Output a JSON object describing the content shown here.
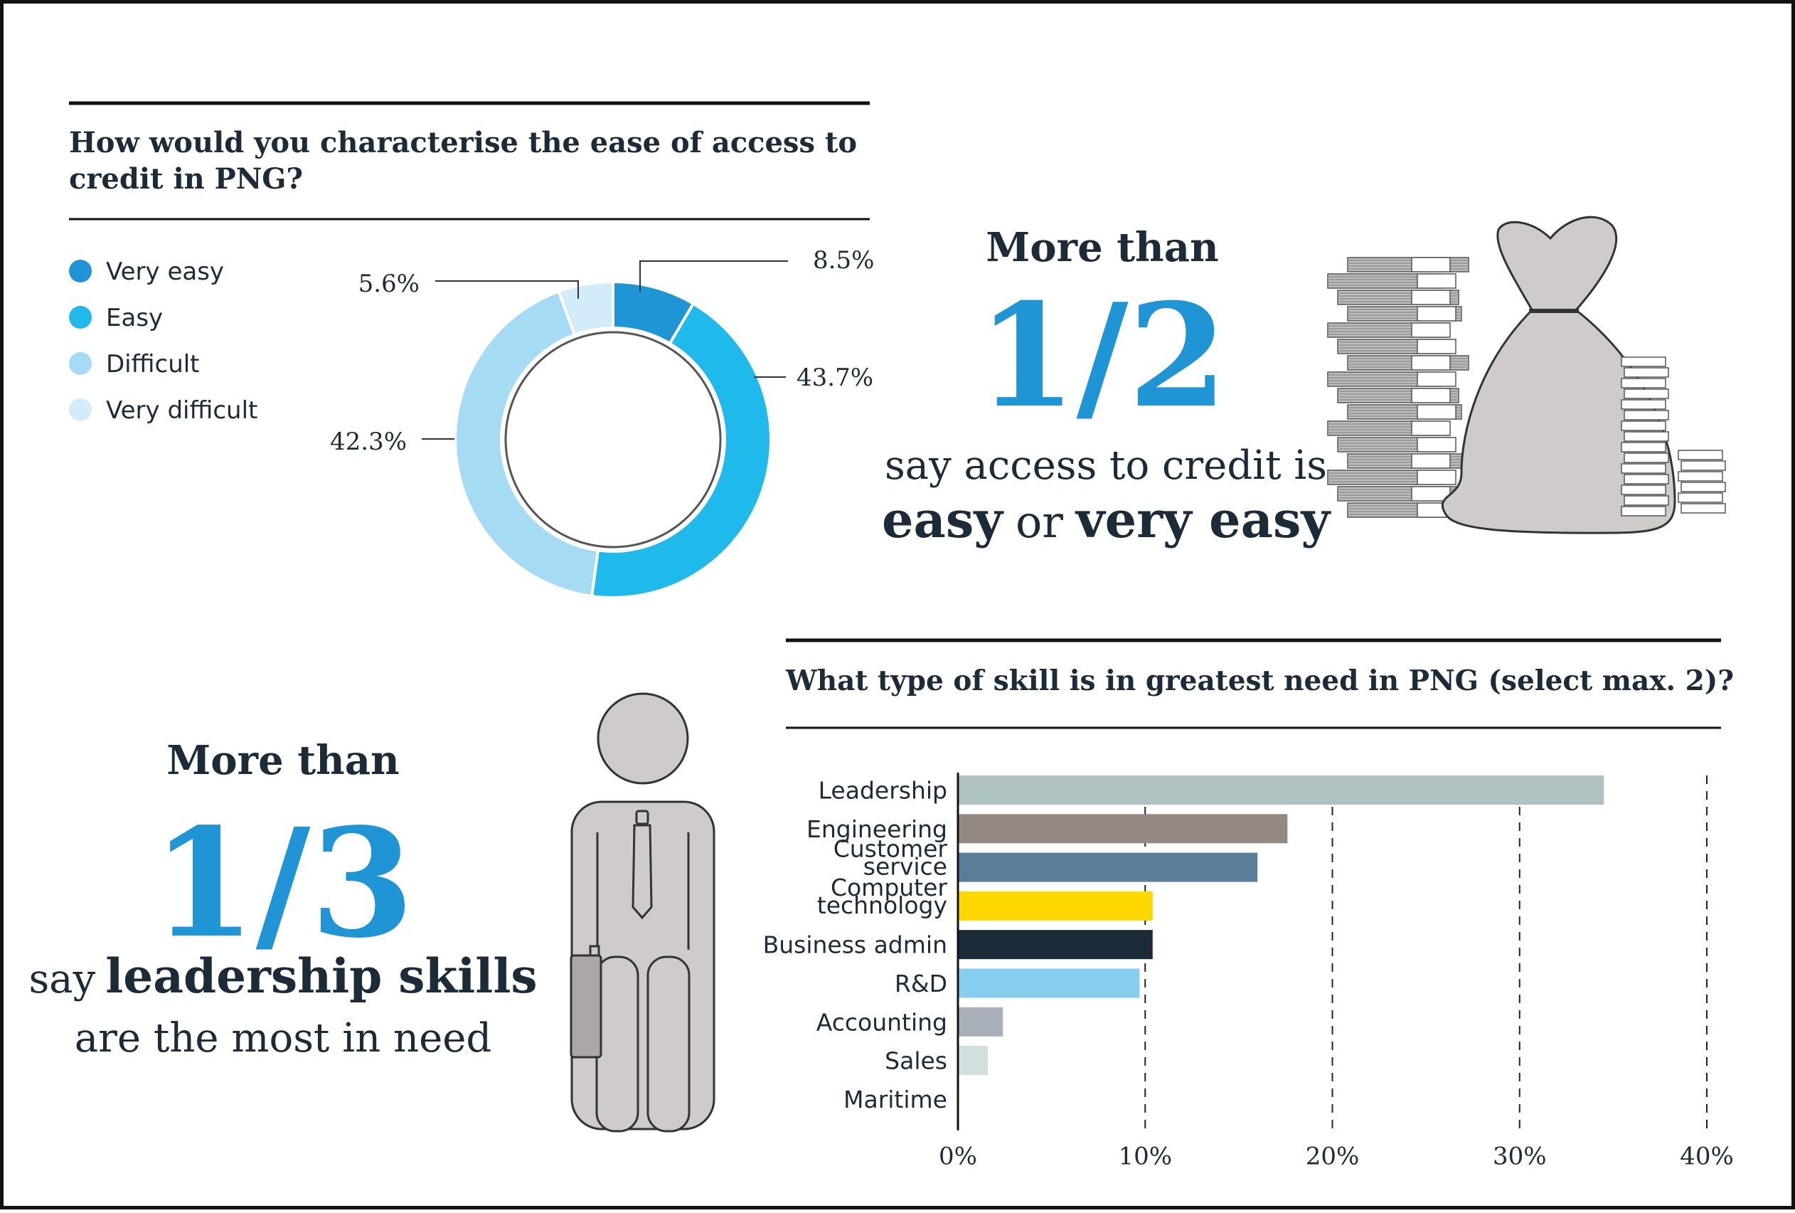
{
  "chart_data": [
    {
      "type": "pie",
      "title": "How would you characterise the ease of access to credit in PNG?",
      "title_lines": [
        "How would you characterise the ease of access to",
        "credit in PNG?"
      ],
      "categories": [
        "Very easy",
        "Easy",
        "Difficult",
        "Very difficult"
      ],
      "values": [
        8.5,
        43.7,
        42.3,
        5.6
      ],
      "value_labels": [
        "8.5%",
        "43.7%",
        "42.3%",
        "5.6%"
      ],
      "colors": [
        "#1f95d6",
        "#1fb9ec",
        "#a6dbf4",
        "#d3ecf9"
      ],
      "legend": "left"
    },
    {
      "type": "bar",
      "orientation": "horizontal",
      "title": "What type of skill is in greatest need in PNG (select max. 2)?",
      "categories": [
        "Leadership",
        "Engineering",
        "Customer service",
        "Computer technology",
        "Business admin",
        "R&D",
        "Accounting",
        "Sales",
        "Maritime"
      ],
      "category_lines": [
        [
          "Leadership"
        ],
        [
          "Engineering"
        ],
        [
          "Customer",
          "service"
        ],
        [
          "Computer",
          "technology"
        ],
        [
          "Business admin"
        ],
        [
          "R&D"
        ],
        [
          "Accounting"
        ],
        [
          "Sales"
        ],
        [
          "Maritime"
        ]
      ],
      "values": [
        34.5,
        17.6,
        16.0,
        10.4,
        10.4,
        9.7,
        2.4,
        1.6,
        0
      ],
      "colors": [
        "#aec2c1",
        "#958984",
        "#5a7e97",
        "#ffd800",
        "#1c2b38",
        "#87ceee",
        "#aab0ba",
        "#d1dfdf",
        "#cccccc"
      ],
      "xlim": [
        0,
        40
      ],
      "xticks": [
        0,
        10,
        20,
        30,
        40
      ],
      "xtick_labels": [
        "0%",
        "10%",
        "20%",
        "30%",
        "40%"
      ],
      "grid": "dashed vertical"
    }
  ],
  "callouts": {
    "credit": {
      "more_than": "More than",
      "fraction": "1/2",
      "line1": "say access to credit is",
      "line2_bold_a": "easy",
      "line2_connector": "or",
      "line2_bold_b": "very easy",
      "icon": "money-bag-icon"
    },
    "skills": {
      "more_than": "More than",
      "fraction": "1/3",
      "line1_prefix": "say",
      "line1_bold": "leadership skills",
      "line2": "are the most in need",
      "icon": "businessman-icon"
    }
  },
  "colors": {
    "accent": "#1f95d6",
    "dark": "#1c2b38",
    "figure_fill": "#cfcbca",
    "stroke": "#333333"
  }
}
